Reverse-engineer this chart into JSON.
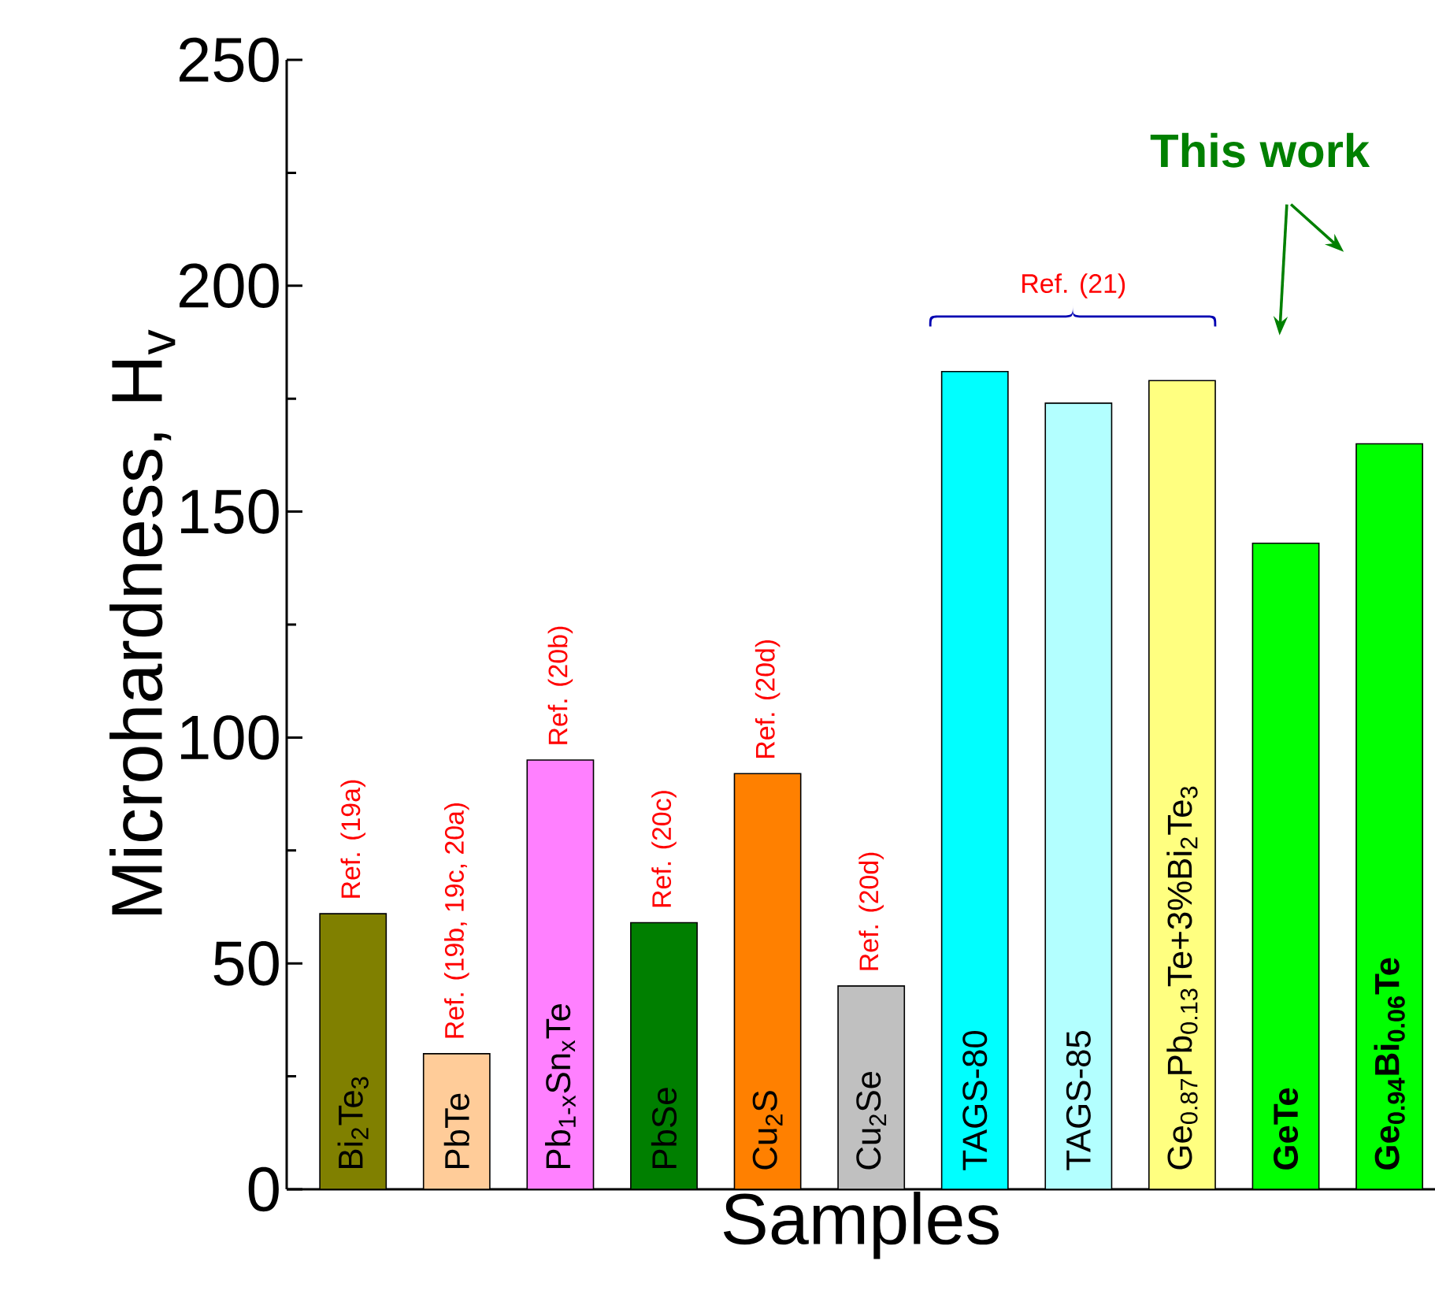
{
  "chart_data": {
    "type": "bar",
    "xlabel": "Samples",
    "ylabel": "Microhardness, H$_{v}$",
    "categories": [
      "Bi$_{2}$Te$_{3}$",
      "PbTe",
      "Pb$_{1-x}$Sn$_{x}$Te",
      "PbSe",
      "Cu$_{2}$S",
      "Cu$_{2}$Se",
      "TAGS-80",
      "TAGS-85",
      "Ge$_{0.87}$Pb$_{0.13}$Te+3%Bi$_{2}$Te$_{3}$",
      "**GeTe**",
      "**Ge$_{0.94}$Bi$_{0.06}$Te**"
    ],
    "values": [
      61,
      30,
      95,
      59,
      92,
      45,
      181,
      174,
      179,
      143,
      165
    ],
    "colors": [
      "#808000",
      "#ffcc99",
      "#ff80ff",
      "#007f00",
      "#ff8000",
      "#c0c0c0",
      "#00ffff",
      "#b3ffff",
      "#ffff80",
      "#00ff00",
      "#00ff00"
    ],
    "ylim": [
      0,
      250
    ],
    "yticks": [
      0,
      {
        "value": 25,
        "label": null
      },
      50,
      {
        "value": 75,
        "label": null
      },
      100,
      {
        "value": 125,
        "label": null
      },
      150,
      {
        "value": 175,
        "label": null
      },
      200,
      {
        "value": 225,
        "label": null
      },
      250
    ],
    "annotations": [
      {
        "text": "Ref. (19a)",
        "x": "Bi$_{2}$Te$_{3}$",
        "y": 61
      },
      {
        "text": "Ref. (19b, 19c, 20a)",
        "x": "PbTe",
        "y": 30
      },
      {
        "text": "Ref. (20b)",
        "x": "Pb$_{1-x}$Sn$_{x}$Te",
        "y": 95
      },
      {
        "text": "Ref. (20c)",
        "x": "PbSe",
        "y": 59
      },
      {
        "text": "Ref. (20d)",
        "x": "Cu$_{2}$S",
        "y": 92
      },
      {
        "text": "Ref. (20d)",
        "x": "Cu$_{2}$Se",
        "y": 45
      },
      "Ref. (21)",
      "This work"
    ],
    "grid": false
  }
}
